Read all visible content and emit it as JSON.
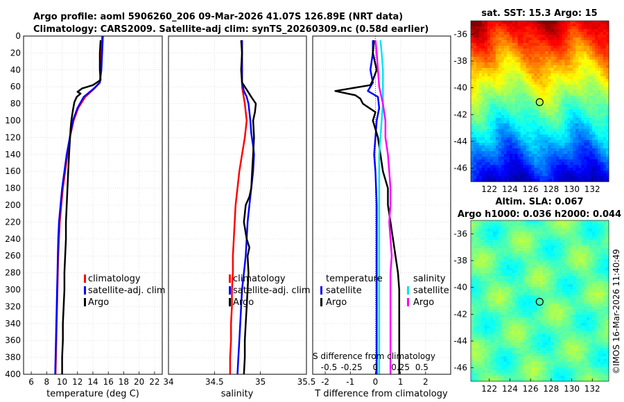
{
  "header": {
    "line1": "Argo profile: aoml 5906260_206 09-Mar-2026 41.07S 126.89E (NRT data)",
    "line2": "Climatology: CARS2009. Satellite-adj clim: synTS_20260309.nc (0.58d earlier)"
  },
  "footer": {
    "stamp": "©IMOS 16-Mar-2026 11:40:49"
  },
  "chart_data": [
    {
      "type": "line",
      "id": "temperature",
      "xlabel": "temperature (deg C)",
      "xlim": [
        5,
        23
      ],
      "xticks": [
        6,
        8,
        10,
        12,
        14,
        16,
        18,
        20,
        22
      ],
      "ylim": [
        0,
        400
      ],
      "yticks": [
        0,
        20,
        40,
        60,
        80,
        100,
        120,
        140,
        160,
        180,
        200,
        220,
        240,
        260,
        280,
        300,
        320,
        340,
        360,
        380,
        400
      ],
      "legend": [
        "climatology",
        "satellite-adj. clim",
        "Argo"
      ],
      "series": [
        {
          "name": "climatology",
          "color": "#ff0000",
          "points": [
            [
              15.2,
              0
            ],
            [
              15.1,
              20
            ],
            [
              15.0,
              40
            ],
            [
              14.9,
              55
            ],
            [
              14.2,
              62
            ],
            [
              13.0,
              72
            ],
            [
              12.1,
              85
            ],
            [
              11.5,
              100
            ],
            [
              11.0,
              120
            ],
            [
              10.7,
              140
            ],
            [
              10.4,
              160
            ],
            [
              10.1,
              180
            ],
            [
              9.9,
              200
            ],
            [
              9.7,
              220
            ],
            [
              9.6,
              240
            ],
            [
              9.5,
              260
            ],
            [
              9.45,
              280
            ],
            [
              9.4,
              300
            ],
            [
              9.35,
              320
            ],
            [
              9.3,
              340
            ],
            [
              9.25,
              360
            ],
            [
              9.2,
              380
            ],
            [
              9.15,
              400
            ]
          ]
        },
        {
          "name": "satellite-adj. clim",
          "color": "#0000ff",
          "points": [
            [
              15.3,
              0
            ],
            [
              15.2,
              20
            ],
            [
              15.1,
              40
            ],
            [
              14.9,
              55
            ],
            [
              14.0,
              63
            ],
            [
              12.8,
              72
            ],
            [
              12.0,
              85
            ],
            [
              11.4,
              100
            ],
            [
              11.0,
              120
            ],
            [
              10.6,
              140
            ],
            [
              10.3,
              160
            ],
            [
              10.0,
              180
            ],
            [
              9.8,
              200
            ],
            [
              9.6,
              220
            ],
            [
              9.5,
              240
            ],
            [
              9.45,
              260
            ],
            [
              9.4,
              280
            ],
            [
              9.35,
              300
            ],
            [
              9.3,
              320
            ],
            [
              9.25,
              340
            ],
            [
              9.2,
              360
            ],
            [
              9.15,
              380
            ],
            [
              9.1,
              400
            ]
          ]
        },
        {
          "name": "Argo",
          "color": "#000000",
          "points": [
            [
              15.0,
              5
            ],
            [
              14.9,
              20
            ],
            [
              14.9,
              40
            ],
            [
              15.0,
              52
            ],
            [
              14.0,
              58
            ],
            [
              12.6,
              62
            ],
            [
              12.0,
              66
            ],
            [
              12.4,
              68
            ],
            [
              11.9,
              72
            ],
            [
              11.6,
              78
            ],
            [
              11.4,
              88
            ],
            [
              11.2,
              100
            ],
            [
              11.1,
              110
            ],
            [
              11.0,
              125
            ],
            [
              10.9,
              140
            ],
            [
              10.8,
              160
            ],
            [
              10.7,
              180
            ],
            [
              10.6,
              200
            ],
            [
              10.5,
              220
            ],
            [
              10.5,
              240
            ],
            [
              10.4,
              260
            ],
            [
              10.3,
              280
            ],
            [
              10.3,
              300
            ],
            [
              10.2,
              320
            ],
            [
              10.1,
              340
            ],
            [
              10.1,
              360
            ],
            [
              10.0,
              380
            ],
            [
              10.0,
              400
            ]
          ]
        }
      ]
    },
    {
      "type": "line",
      "id": "salinity",
      "xlabel": "salinity",
      "xlim": [
        34,
        35.5
      ],
      "xticks": [
        34,
        34.5,
        35,
        35.5
      ],
      "xticklabels": [
        "34",
        "34.5",
        "35",
        "35.5"
      ],
      "ylim": [
        0,
        400
      ],
      "legend": [
        "climatology",
        "satellite-adj. clim",
        "Argo"
      ],
      "series": [
        {
          "name": "climatology",
          "color": "#ff0000",
          "points": [
            [
              34.8,
              5
            ],
            [
              34.8,
              20
            ],
            [
              34.8,
              40
            ],
            [
              34.8,
              60
            ],
            [
              34.83,
              80
            ],
            [
              34.85,
              100
            ],
            [
              34.83,
              120
            ],
            [
              34.8,
              140
            ],
            [
              34.77,
              160
            ],
            [
              34.75,
              180
            ],
            [
              34.73,
              200
            ],
            [
              34.72,
              220
            ],
            [
              34.71,
              240
            ],
            [
              34.7,
              260
            ],
            [
              34.7,
              280
            ],
            [
              34.69,
              300
            ],
            [
              34.69,
              320
            ],
            [
              34.68,
              340
            ],
            [
              34.68,
              360
            ],
            [
              34.67,
              380
            ],
            [
              34.67,
              400
            ]
          ]
        },
        {
          "name": "satellite-adj. clim",
          "color": "#0000ff",
          "points": [
            [
              34.8,
              5
            ],
            [
              34.8,
              20
            ],
            [
              34.8,
              40
            ],
            [
              34.8,
              55
            ],
            [
              34.82,
              65
            ],
            [
              34.85,
              72
            ],
            [
              34.87,
              80
            ],
            [
              34.89,
              100
            ],
            [
              34.9,
              115
            ],
            [
              34.92,
              130
            ],
            [
              34.93,
              140
            ],
            [
              34.92,
              160
            ],
            [
              34.9,
              180
            ],
            [
              34.88,
              200
            ],
            [
              34.86,
              220
            ],
            [
              34.85,
              240
            ],
            [
              34.84,
              260
            ],
            [
              34.82,
              280
            ],
            [
              34.8,
              300
            ],
            [
              34.79,
              320
            ],
            [
              34.78,
              340
            ],
            [
              34.77,
              360
            ],
            [
              34.76,
              380
            ],
            [
              34.75,
              400
            ]
          ]
        },
        {
          "name": "Argo",
          "color": "#000000",
          "points": [
            [
              34.79,
              5
            ],
            [
              34.8,
              20
            ],
            [
              34.79,
              40
            ],
            [
              34.8,
              55
            ],
            [
              34.86,
              65
            ],
            [
              34.9,
              72
            ],
            [
              34.95,
              80
            ],
            [
              34.94,
              90
            ],
            [
              34.92,
              100
            ],
            [
              34.93,
              120
            ],
            [
              34.92,
              140
            ],
            [
              34.91,
              160
            ],
            [
              34.9,
              180
            ],
            [
              34.88,
              190
            ],
            [
              34.84,
              200
            ],
            [
              34.82,
              220
            ],
            [
              34.85,
              240
            ],
            [
              34.88,
              250
            ],
            [
              34.86,
              260
            ],
            [
              34.87,
              280
            ],
            [
              34.86,
              300
            ],
            [
              34.85,
              320
            ],
            [
              34.84,
              340
            ],
            [
              34.83,
              360
            ],
            [
              34.83,
              380
            ],
            [
              34.82,
              400
            ]
          ]
        }
      ]
    },
    {
      "type": "line",
      "id": "difference",
      "xlabel": "T difference from climatology",
      "inner_label": "S difference from climatology",
      "xlim": [
        -2.5,
        3
      ],
      "xticks": [
        -2,
        -1,
        0,
        1,
        2
      ],
      "secondary_xticklabels": [
        "-0.5",
        "-0.25",
        "0",
        "0.25",
        "0.5"
      ],
      "ylim": [
        0,
        400
      ],
      "legend_headers": [
        "temperature",
        "salinity"
      ],
      "legend": [
        "satellite",
        "Argo",
        "satellite",
        "Argo"
      ],
      "series": [
        {
          "name": "temperature satellite",
          "color": "#0000ff",
          "points": [
            [
              -0.1,
              5
            ],
            [
              -0.1,
              20
            ],
            [
              -0.2,
              40
            ],
            [
              -0.1,
              55
            ],
            [
              -0.3,
              65
            ],
            [
              0.1,
              72
            ],
            [
              0.15,
              85
            ],
            [
              0.05,
              100
            ],
            [
              0.0,
              120
            ],
            [
              -0.05,
              140
            ],
            [
              0.0,
              160
            ],
            [
              0.05,
              200
            ],
            [
              0.05,
              240
            ],
            [
              0.05,
              280
            ],
            [
              0.05,
              320
            ],
            [
              0.05,
              360
            ],
            [
              0.05,
              400
            ]
          ]
        },
        {
          "name": "temperature Argo",
          "color": "#000000",
          "points": [
            [
              -0.05,
              5
            ],
            [
              -0.1,
              20
            ],
            [
              0.05,
              40
            ],
            [
              -0.1,
              52
            ],
            [
              -0.2,
              58
            ],
            [
              -1.6,
              65
            ],
            [
              -0.8,
              70
            ],
            [
              -0.6,
              74
            ],
            [
              -0.5,
              80
            ],
            [
              0.0,
              90
            ],
            [
              -0.1,
              100
            ],
            [
              0.1,
              120
            ],
            [
              0.2,
              140
            ],
            [
              0.3,
              160
            ],
            [
              0.5,
              180
            ],
            [
              0.5,
              200
            ],
            [
              0.6,
              220
            ],
            [
              0.7,
              240
            ],
            [
              0.8,
              260
            ],
            [
              0.9,
              280
            ],
            [
              0.95,
              300
            ],
            [
              0.95,
              320
            ],
            [
              0.95,
              340
            ],
            [
              0.95,
              360
            ],
            [
              0.95,
              380
            ],
            [
              0.95,
              400
            ]
          ]
        },
        {
          "name": "salinity satellite",
          "color": "#00e5ee",
          "points": [
            [
              0.2,
              5
            ],
            [
              0.25,
              20
            ],
            [
              0.3,
              40
            ],
            [
              0.3,
              60
            ],
            [
              0.3,
              80
            ],
            [
              0.25,
              100
            ],
            [
              0.2,
              120
            ],
            [
              0.15,
              140
            ],
            [
              0.15,
              160
            ],
            [
              0.15,
              180
            ],
            [
              0.15,
              200
            ],
            [
              0.15,
              220
            ],
            [
              0.15,
              240
            ],
            [
              0.15,
              260
            ],
            [
              0.15,
              280
            ],
            [
              0.15,
              300
            ],
            [
              0.15,
              320
            ],
            [
              0.15,
              340
            ],
            [
              0.15,
              360
            ],
            [
              0.15,
              380
            ],
            [
              0.15,
              400
            ]
          ]
        },
        {
          "name": "salinity Argo",
          "color": "#ff00ff",
          "points": [
            [
              0.0,
              5
            ],
            [
              0.05,
              20
            ],
            [
              0.1,
              40
            ],
            [
              0.15,
              60
            ],
            [
              0.3,
              80
            ],
            [
              0.4,
              100
            ],
            [
              0.4,
              120
            ],
            [
              0.5,
              140
            ],
            [
              0.55,
              160
            ],
            [
              0.6,
              180
            ],
            [
              0.6,
              200
            ],
            [
              0.55,
              220
            ],
            [
              0.6,
              240
            ],
            [
              0.65,
              260
            ],
            [
              0.6,
              280
            ],
            [
              0.6,
              300
            ],
            [
              0.6,
              320
            ],
            [
              0.6,
              340
            ],
            [
              0.6,
              360
            ],
            [
              0.6,
              380
            ],
            [
              0.6,
              400
            ]
          ]
        }
      ]
    },
    {
      "type": "heatmap",
      "id": "sst-map",
      "title": "sat. SST: 15.3 Argo: 15",
      "xticks": [
        122,
        124,
        126,
        128,
        130,
        132
      ],
      "yticks": [
        -36,
        -38,
        -40,
        -42,
        -44,
        -46
      ],
      "xlim": [
        120.2,
        133.6
      ],
      "ylim": [
        -47,
        -35
      ],
      "argo_position": [
        126.89,
        -41.07
      ],
      "colormap": "jet"
    },
    {
      "type": "heatmap",
      "id": "sla-map",
      "title_line1": "Altim. SLA: 0.067",
      "title_line2": "Argo h1000: 0.036 h2000: 0.044",
      "xticks": [
        122,
        124,
        126,
        128,
        130,
        132
      ],
      "yticks": [
        -36,
        -38,
        -40,
        -42,
        -44,
        -46
      ],
      "xlim": [
        120.2,
        133.6
      ],
      "ylim": [
        -47,
        -35
      ],
      "argo_position": [
        126.89,
        -41.07
      ],
      "colormap": "jet"
    }
  ]
}
